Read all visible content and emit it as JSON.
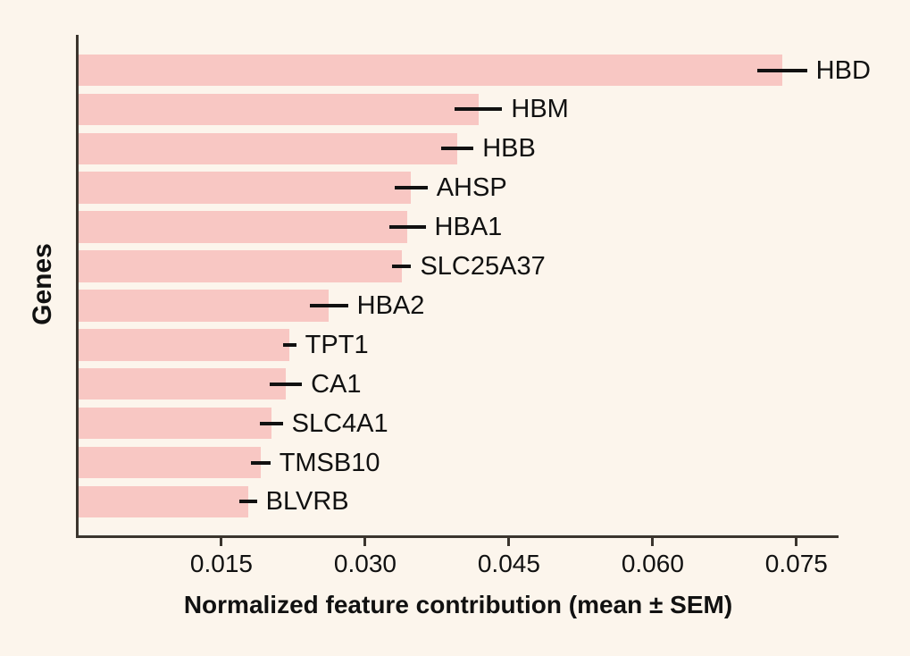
{
  "chart_data": {
    "type": "bar",
    "orientation": "horizontal",
    "title": "",
    "xlabel": "Normalized feature contribution (mean ± SEM)",
    "ylabel": "Genes",
    "categories": [
      "HBD",
      "HBM",
      "HBB",
      "AHSP",
      "HBA1",
      "SLC25A37",
      "HBA2",
      "TPT1",
      "CA1",
      "SLC4A1",
      "TMSB10",
      "BLVRB"
    ],
    "series": [
      {
        "name": "mean normalized feature contribution",
        "values": [
          0.0735,
          0.0418,
          0.0396,
          0.0348,
          0.0344,
          0.0338,
          0.0262,
          0.0221,
          0.0217,
          0.0202,
          0.0191,
          0.0178
        ]
      },
      {
        "name": "SEM",
        "values": [
          0.0026,
          0.0025,
          0.0017,
          0.0017,
          0.0019,
          0.001,
          0.002,
          0.0007,
          0.0017,
          0.0012,
          0.001,
          0.0009
        ]
      }
    ],
    "x_ticks": [
      0.015,
      0.03,
      0.045,
      0.06,
      0.075
    ],
    "x_tick_labels": [
      "0.015",
      "0.030",
      "0.045",
      "0.060",
      "0.075"
    ],
    "xlim": [
      0,
      0.0793
    ],
    "grid": false,
    "legend_position": "none",
    "colors": {
      "bar": "#F8C7C3",
      "error_bar": "#111111",
      "background": "#FCF5EC",
      "axis": "#3B352E",
      "text": "#111111"
    }
  }
}
